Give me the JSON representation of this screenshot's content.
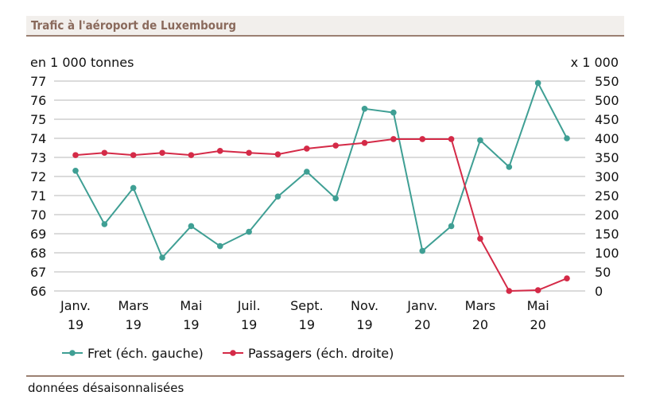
{
  "title": "Trafic à l'aéroport de Luxembourg",
  "note": "données désaisonnalisées",
  "chart_data": {
    "type": "line",
    "left_axis": {
      "label": "en 1 000 tonnes",
      "ylim": [
        66,
        77
      ],
      "ticks": [
        66,
        67,
        68,
        69,
        70,
        71,
        72,
        73,
        74,
        75,
        76,
        77
      ]
    },
    "right_axis": {
      "label": "x 1 000",
      "ylim": [
        0,
        550
      ],
      "ticks": [
        0,
        50,
        100,
        150,
        200,
        250,
        300,
        350,
        400,
        450,
        500,
        550
      ]
    },
    "x_tick_labels": [
      [
        "Janv.",
        "19"
      ],
      [
        "Mars",
        "19"
      ],
      [
        "Mai",
        "19"
      ],
      [
        "Juil.",
        "19"
      ],
      [
        "Sept.",
        "19"
      ],
      [
        "Nov.",
        "19"
      ],
      [
        "Janv.",
        "20"
      ],
      [
        "Mars",
        "20"
      ],
      [
        "Mai",
        "20"
      ]
    ],
    "x": [
      "2019-01",
      "2019-02",
      "2019-03",
      "2019-04",
      "2019-05",
      "2019-06",
      "2019-07",
      "2019-08",
      "2019-09",
      "2019-10",
      "2019-11",
      "2019-12",
      "2020-01",
      "2020-02",
      "2020-03",
      "2020-04",
      "2020-05",
      "2020-06"
    ],
    "grid": true,
    "legend_position": "bottom",
    "series": [
      {
        "name": "Fret (éch. gauche)",
        "axis": "left",
        "color": "#3f9f94",
        "values": [
          72.3,
          69.5,
          71.4,
          67.75,
          69.4,
          68.35,
          69.1,
          70.95,
          72.25,
          70.85,
          75.55,
          75.35,
          68.1,
          69.4,
          73.9,
          72.5,
          76.9,
          74.0
        ]
      },
      {
        "name": "Passagers (éch. droite)",
        "axis": "right",
        "color": "#d42a47",
        "values": [
          356,
          362,
          356,
          362,
          356,
          367,
          362,
          358,
          373,
          381,
          388,
          398,
          398,
          398,
          137,
          0,
          2,
          33
        ]
      }
    ]
  }
}
